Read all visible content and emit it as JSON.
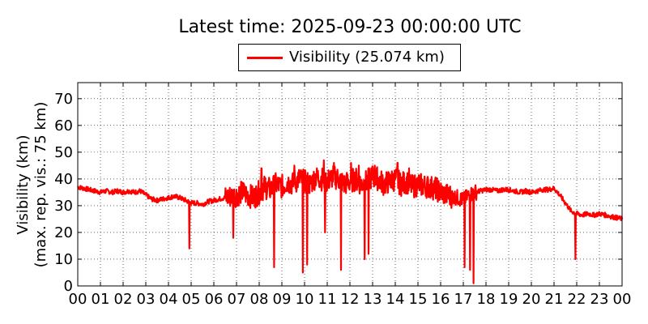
{
  "chart_data": {
    "type": "line",
    "title": "Latest time: 2025-09-23 00:00:00 UTC",
    "ylabel_lines": [
      "Visibility (km)",
      "(max. rep. vis.: 75 km)"
    ],
    "xlabel": "",
    "x_tick_labels": [
      "00",
      "01",
      "02",
      "03",
      "04",
      "05",
      "06",
      "07",
      "08",
      "09",
      "10",
      "11",
      "12",
      "13",
      "14",
      "15",
      "16",
      "17",
      "18",
      "19",
      "20",
      "21",
      "22",
      "23",
      "00"
    ],
    "y_ticks": [
      0,
      10,
      20,
      30,
      40,
      50,
      60,
      70
    ],
    "xlim": [
      0,
      24
    ],
    "ylim": [
      0,
      76
    ],
    "grid": true,
    "legend_position": "top-center",
    "series": [
      {
        "name": "Visibility (25.074 km)",
        "color": "#ff0000",
        "x": [
          0,
          0.25,
          0.5,
          0.75,
          1,
          1.25,
          1.5,
          1.75,
          2,
          2.25,
          2.5,
          2.75,
          3,
          3.25,
          3.5,
          3.75,
          4,
          4.25,
          4.5,
          4.75,
          5,
          5.25,
          5.5,
          5.75,
          6,
          6.25,
          6.5,
          6.75,
          7,
          7.25,
          7.5,
          7.75,
          8,
          8.25,
          8.5,
          8.75,
          9,
          9.25,
          9.5,
          9.75,
          10,
          10.25,
          10.5,
          10.75,
          11,
          11.25,
          11.5,
          11.75,
          12,
          12.25,
          12.5,
          12.75,
          13,
          13.25,
          13.5,
          13.75,
          14,
          14.25,
          14.5,
          14.75,
          15,
          15.25,
          15.5,
          15.75,
          16,
          16.25,
          16.5,
          16.75,
          17,
          17.25,
          17.5,
          17.75,
          18,
          18.25,
          18.5,
          18.75,
          19,
          19.25,
          19.5,
          19.75,
          20,
          20.25,
          20.5,
          20.75,
          21,
          21.25,
          21.5,
          21.75,
          22,
          22.25,
          22.5,
          22.75,
          23,
          23.25,
          23.5,
          23.75,
          24
        ],
        "y": [
          37,
          36.5,
          36,
          35.5,
          35,
          35.5,
          35,
          35.5,
          35,
          35.5,
          35,
          35.5,
          34,
          32.5,
          32,
          32.5,
          33,
          33.5,
          33,
          32,
          31,
          31,
          30.5,
          31.5,
          32,
          32.5,
          33,
          33.5,
          34,
          35,
          34,
          33,
          35,
          37,
          36,
          38,
          37,
          39,
          38,
          40,
          39,
          38,
          41,
          40,
          39,
          41,
          40,
          38,
          39,
          40,
          38,
          39,
          41,
          40,
          38,
          39,
          40,
          38,
          39,
          37,
          38,
          37.5,
          37,
          36.5,
          35,
          34,
          33.5,
          33,
          32,
          34,
          35,
          35.5,
          36,
          36,
          35.5,
          36,
          36,
          35.5,
          35,
          35.5,
          35,
          35.5,
          36,
          36,
          36.5,
          34,
          31,
          28,
          27,
          26.5,
          27,
          26.5,
          27,
          26.5,
          26,
          25.5,
          25.074
        ],
        "spikes": [
          {
            "x": 4.92,
            "y": 14
          },
          {
            "x": 6.85,
            "y": 18
          },
          {
            "x": 8.65,
            "y": 7
          },
          {
            "x": 9.92,
            "y": 5
          },
          {
            "x": 10.12,
            "y": 8
          },
          {
            "x": 10.9,
            "y": 20
          },
          {
            "x": 11.6,
            "y": 6
          },
          {
            "x": 12.65,
            "y": 10
          },
          {
            "x": 12.82,
            "y": 12
          },
          {
            "x": 17.05,
            "y": 7
          },
          {
            "x": 17.3,
            "y": 6
          },
          {
            "x": 17.45,
            "y": 1
          },
          {
            "x": 21.95,
            "y": 10
          },
          {
            "x": 8.1,
            "y": 44
          },
          {
            "x": 9.55,
            "y": 45
          },
          {
            "x": 10.55,
            "y": 44
          },
          {
            "x": 10.85,
            "y": 47
          },
          {
            "x": 11.3,
            "y": 46
          },
          {
            "x": 12.05,
            "y": 46
          },
          {
            "x": 12.4,
            "y": 45
          },
          {
            "x": 13.1,
            "y": 45
          },
          {
            "x": 14.1,
            "y": 46
          },
          {
            "x": 14.6,
            "y": 44
          }
        ]
      }
    ]
  }
}
